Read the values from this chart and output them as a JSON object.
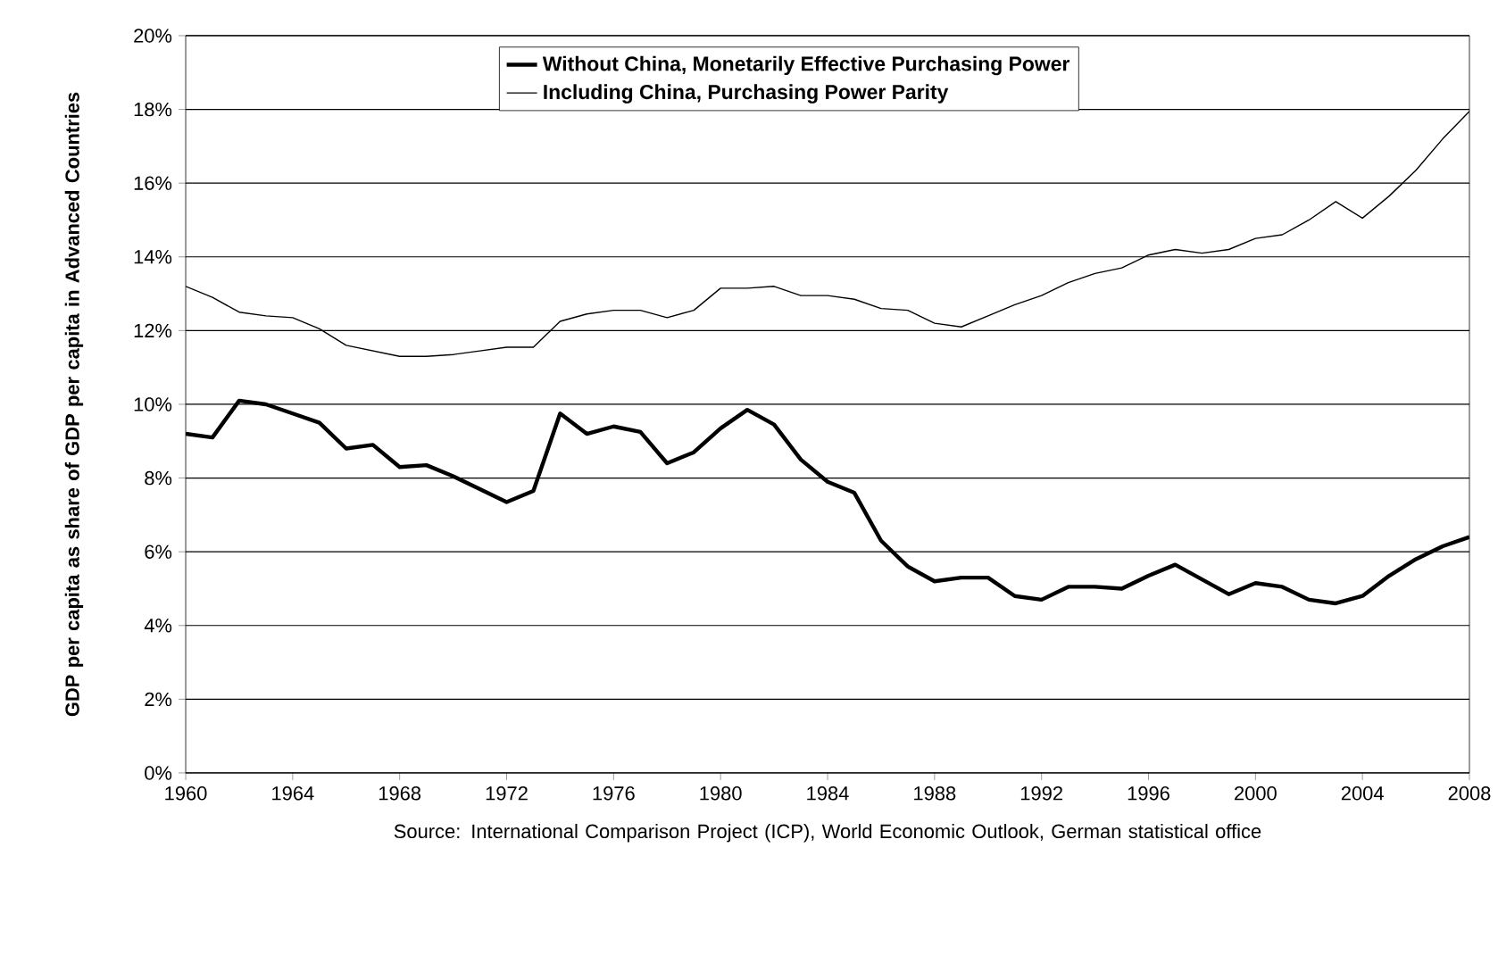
{
  "chart_data": {
    "type": "line",
    "ylabel": "GDP per capita as share of GDP per capita in Advanced Countries",
    "x": [
      1960,
      1961,
      1962,
      1963,
      1964,
      1965,
      1966,
      1967,
      1968,
      1969,
      1970,
      1971,
      1972,
      1973,
      1974,
      1975,
      1976,
      1977,
      1978,
      1979,
      1980,
      1981,
      1982,
      1983,
      1984,
      1985,
      1986,
      1987,
      1988,
      1989,
      1990,
      1991,
      1992,
      1993,
      1994,
      1995,
      1996,
      1997,
      1998,
      1999,
      2000,
      2001,
      2002,
      2003,
      2004,
      2005,
      2006,
      2007,
      2008
    ],
    "series": [
      {
        "name": "Without China, Monetarily Effective Purchasing Power",
        "color": "#000000",
        "values": [
          9.2,
          9.1,
          10.1,
          10.0,
          9.75,
          9.5,
          8.8,
          8.9,
          8.3,
          8.35,
          8.05,
          7.7,
          7.35,
          7.65,
          9.75,
          9.2,
          9.4,
          9.25,
          8.4,
          8.7,
          9.35,
          9.85,
          9.45,
          8.5,
          7.9,
          7.6,
          6.3,
          5.6,
          5.2,
          5.3,
          5.3,
          4.8,
          4.7,
          5.05,
          5.05,
          5.0,
          5.35,
          5.65,
          5.25,
          4.85,
          5.15,
          5.05,
          4.7,
          4.6,
          4.8,
          5.35,
          5.8,
          6.15,
          6.4
        ]
      },
      {
        "name": "Including China, Purchasing Power Parity",
        "color": "#000000",
        "values": [
          13.2,
          12.9,
          12.5,
          12.4,
          12.35,
          12.05,
          11.6,
          11.45,
          11.3,
          11.3,
          11.35,
          11.45,
          11.55,
          11.55,
          12.25,
          12.45,
          12.55,
          12.55,
          12.35,
          12.55,
          13.15,
          13.15,
          13.2,
          12.95,
          12.95,
          12.85,
          12.6,
          12.55,
          12.2,
          12.1,
          12.4,
          12.7,
          12.95,
          13.3,
          13.55,
          13.7,
          14.05,
          14.2,
          14.1,
          14.2,
          14.5,
          14.6,
          15.0,
          15.5,
          15.05,
          15.65,
          16.35,
          17.2,
          17.95
        ]
      }
    ],
    "xlim": [
      1960,
      2008
    ],
    "xticks": [
      1960,
      1964,
      1968,
      1972,
      1976,
      1980,
      1984,
      1988,
      1992,
      1996,
      2000,
      2004,
      2008
    ],
    "ylim": [
      0,
      20
    ],
    "yticks": [
      {
        "value": 0,
        "label": "0%"
      },
      {
        "value": 2,
        "label": "2%"
      },
      {
        "value": 4,
        "label": "4%"
      },
      {
        "value": 6,
        "label": "6%"
      },
      {
        "value": 8,
        "label": "8%"
      },
      {
        "value": 10,
        "label": "10%"
      },
      {
        "value": 12,
        "label": "12%"
      },
      {
        "value": 14,
        "label": "14%"
      },
      {
        "value": 16,
        "label": "16%"
      },
      {
        "value": 18,
        "label": "18%"
      },
      {
        "value": 20,
        "label": "20%"
      }
    ],
    "grid": "y",
    "legend": "top",
    "marker": "none",
    "line_style": "solid",
    "annotations": [
      "Source: International Comparison Project (ICP), World Economic Outlook, German statistical office"
    ]
  }
}
